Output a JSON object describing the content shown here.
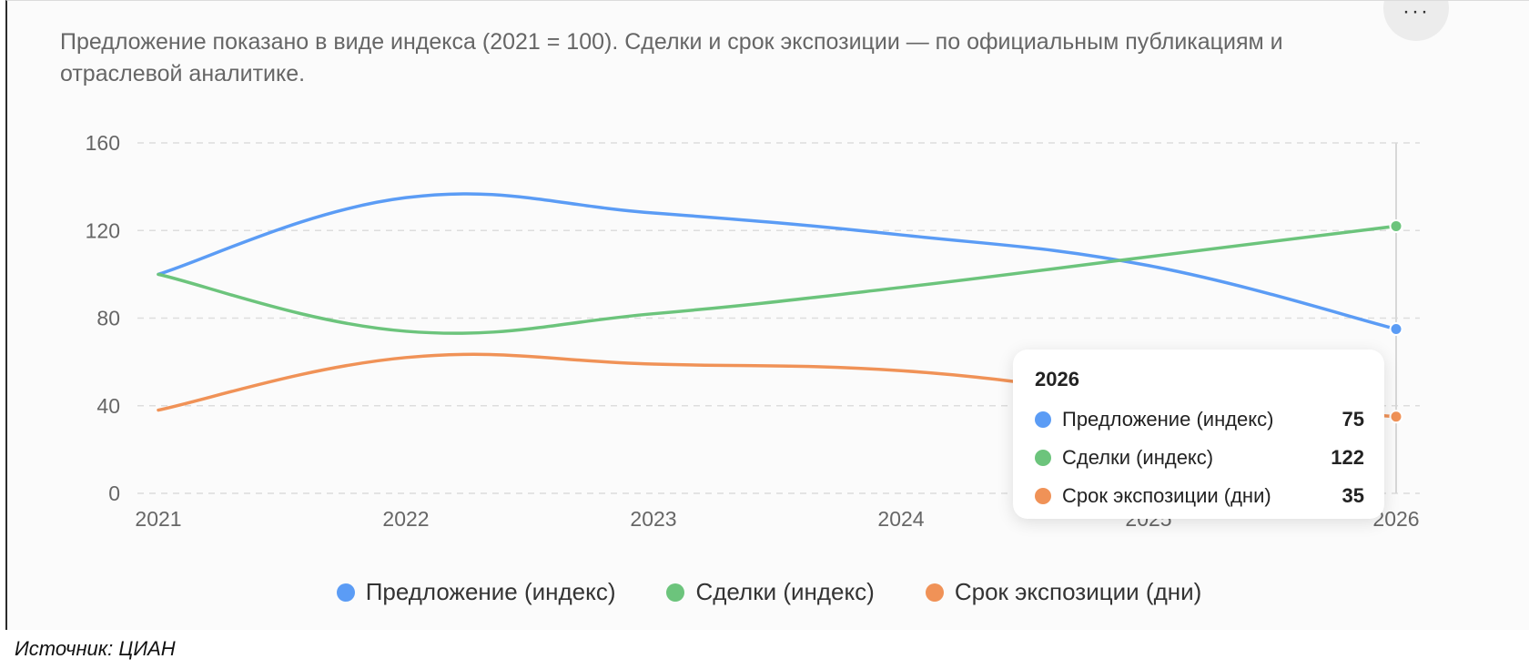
{
  "subtitle": "Предложение показано в виде индекса (2021 = 100). Сделки и срок экспозиции — по официальным публикациям и отраслевой аналитике.",
  "menu_label": "···",
  "source": "Источник: ЦИАН",
  "colors": {
    "supply": "#5b9cf5",
    "deals": "#6cc47c",
    "exposure": "#f09257",
    "grid": "#dddddd",
    "axis_text": "#666666"
  },
  "chart_data": {
    "type": "line",
    "x": [
      "2021",
      "2022",
      "2023",
      "2024",
      "2025",
      "2026"
    ],
    "y_ticks": [
      "0",
      "40",
      "80",
      "120",
      "160"
    ],
    "ylim": [
      0,
      160
    ],
    "grid": true,
    "legend_position": "bottom",
    "series": [
      {
        "name": "Предложение (индекс)",
        "color": "#5b9cf5",
        "values": [
          100,
          135,
          128,
          118,
          104,
          75
        ]
      },
      {
        "name": "Сделки (индекс)",
        "color": "#6cc47c",
        "values": [
          100,
          74,
          82,
          94,
          108,
          122
        ]
      },
      {
        "name": "Срок экспозиции (дни)",
        "color": "#f09257",
        "values": [
          38,
          62,
          59,
          56,
          44,
          35
        ]
      }
    ]
  },
  "tooltip": {
    "title": "2026",
    "rows": [
      {
        "label": "Предложение (индекс)",
        "value": "75",
        "color": "#5b9cf5"
      },
      {
        "label": "Сделки (индекс)",
        "value": "122",
        "color": "#6cc47c"
      },
      {
        "label": "Срок экспозиции (дни)",
        "value": "35",
        "color": "#f09257"
      }
    ]
  },
  "legend": [
    {
      "label": "Предложение (индекс)",
      "color": "#5b9cf5"
    },
    {
      "label": "Сделки (индекс)",
      "color": "#6cc47c"
    },
    {
      "label": "Срок экспозиции (дни)",
      "color": "#f09257"
    }
  ]
}
